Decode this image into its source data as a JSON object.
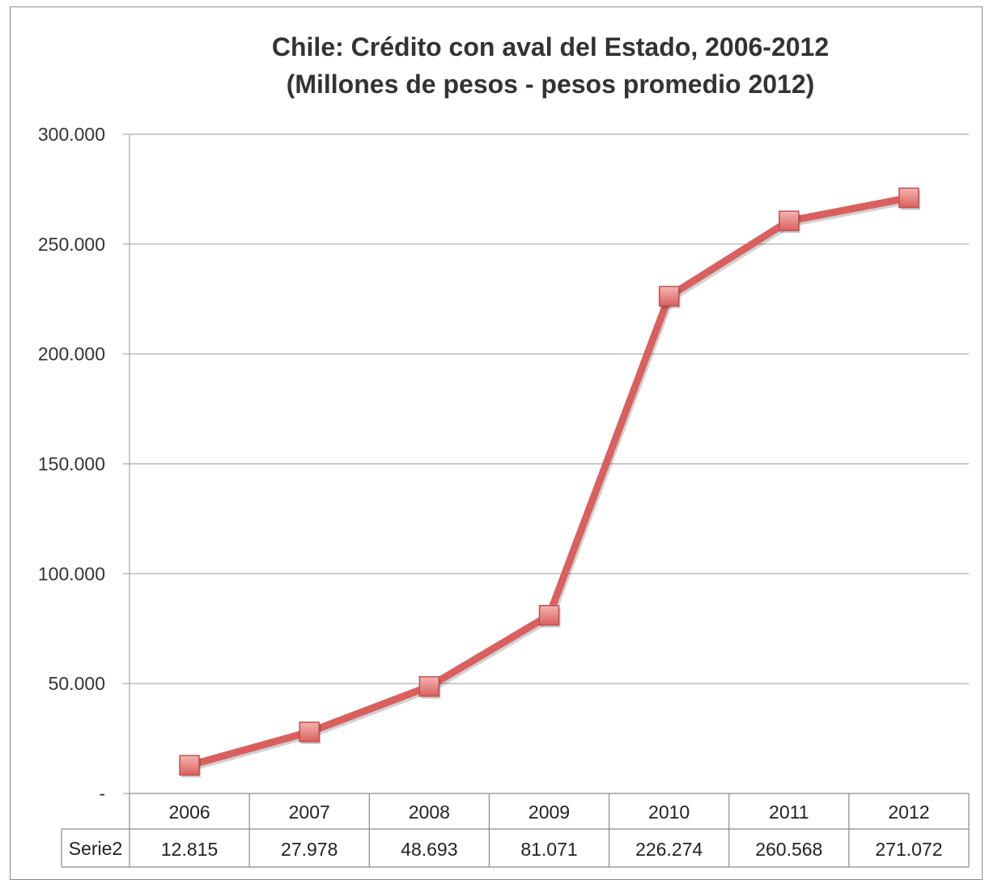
{
  "chart_data": {
    "type": "line",
    "title_line1": "Chile: Crédito con aval del Estado, 2006-2012",
    "title_line2": "(Millones de pesos - pesos promedio 2012)",
    "categories": [
      "2006",
      "2007",
      "2008",
      "2009",
      "2010",
      "2011",
      "2012"
    ],
    "y_tick_labels": [
      "-",
      "50.000",
      "100.000",
      "150.000",
      "200.000",
      "250.000",
      "300.000"
    ],
    "y_tick_values": [
      0,
      50000,
      100000,
      150000,
      200000,
      250000,
      300000
    ],
    "ylim": [
      0,
      300000
    ],
    "grid": true,
    "legend": "none",
    "series": [
      {
        "name": "Serie2",
        "values": [
          12815,
          27978,
          48693,
          81071,
          226274,
          260568,
          271072
        ],
        "value_labels": [
          "12.815",
          "27.978",
          "48.693",
          "81.071",
          "226.274",
          "260.568",
          "271.072"
        ],
        "color": "#d9605e",
        "marker_color": "#e98883"
      }
    ],
    "data_table": true
  }
}
